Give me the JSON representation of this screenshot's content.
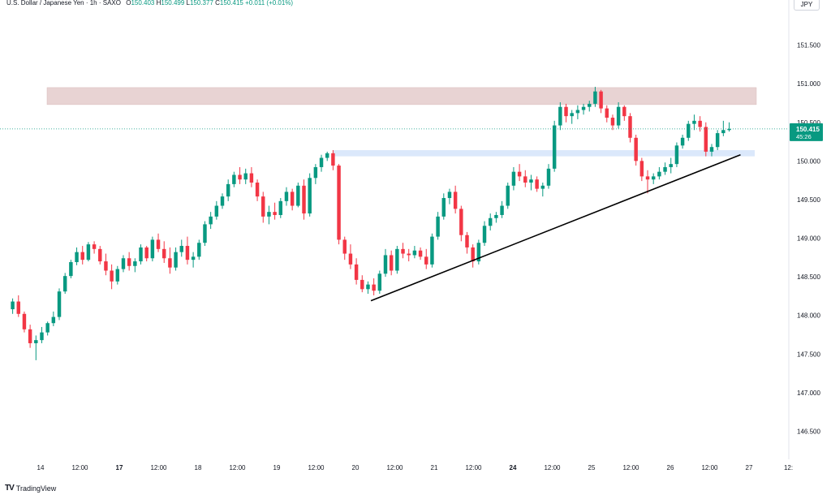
{
  "header": {
    "symbol": "U.S. Dollar / Japanese Yen · 1h · SAXO",
    "o_label": "O",
    "o_value": "150.403",
    "h_label": "H",
    "h_value": "150.499",
    "l_label": "L",
    "l_value": "150.377",
    "c_label": "C",
    "c_value": "150.415",
    "change": "+0.011 (+0.01%)"
  },
  "currency_button": "JPY",
  "brand": {
    "logo": "TV",
    "name": "TradingView"
  },
  "colors": {
    "up": "#089981",
    "down": "#f23645",
    "resistance_zone": "#e8d3d3",
    "support_zone": "#dbe8fb",
    "trendline": "#000000",
    "price_tag": "#089981"
  },
  "chart_data": {
    "type": "candlestick",
    "title": "U.S. Dollar / Japanese Yen · 1h · SAXO",
    "ylim": [
      146.2,
      152.0
    ],
    "y_ticks": [
      "151.500",
      "151.000",
      "150.500",
      "150.000",
      "149.500",
      "149.000",
      "148.500",
      "148.000",
      "147.500",
      "147.000",
      "146.500"
    ],
    "x_ticks": [
      "14",
      "12:00",
      "17",
      "12:00",
      "18",
      "12:00",
      "19",
      "12:00",
      "20",
      "12:00",
      "21",
      "12:00",
      "24",
      "12:00",
      "25",
      "12:00",
      "26",
      "12:00",
      "27",
      "12:"
    ],
    "bold_x_ticks": [
      "17",
      "24"
    ],
    "last_price": "150.415",
    "countdown": "45:26",
    "resistance_zone": [
      150.73,
      150.95
    ],
    "support_zone": [
      150.06,
      150.14
    ],
    "trendline": {
      "from_x": 62,
      "from_y": 148.19,
      "to_x": 126,
      "to_y": 150.08
    },
    "x_domain": [
      0,
      129
    ],
    "candles": [
      [
        148.08,
        148.22,
        148.02,
        148.18
      ],
      [
        148.18,
        148.26,
        147.98,
        148.02
      ],
      [
        148.02,
        148.05,
        147.78,
        147.82
      ],
      [
        147.82,
        147.88,
        147.58,
        147.64
      ],
      [
        147.64,
        147.74,
        147.42,
        147.68
      ],
      [
        147.68,
        147.85,
        147.64,
        147.78
      ],
      [
        147.78,
        147.92,
        147.74,
        147.9
      ],
      [
        147.9,
        148.05,
        147.86,
        147.98
      ],
      [
        147.98,
        148.35,
        147.94,
        148.31
      ],
      [
        148.31,
        148.55,
        148.28,
        148.51
      ],
      [
        148.51,
        148.72,
        148.48,
        148.69
      ],
      [
        148.69,
        148.88,
        148.65,
        148.82
      ],
      [
        148.82,
        148.9,
        148.66,
        148.72
      ],
      [
        148.72,
        148.95,
        148.7,
        148.92
      ],
      [
        148.92,
        148.96,
        148.8,
        148.86
      ],
      [
        148.86,
        148.9,
        148.66,
        148.7
      ],
      [
        148.7,
        148.8,
        148.52,
        148.58
      ],
      [
        148.58,
        148.66,
        148.34,
        148.44
      ],
      [
        148.44,
        148.64,
        148.4,
        148.6
      ],
      [
        148.6,
        148.78,
        148.56,
        148.74
      ],
      [
        148.74,
        148.82,
        148.58,
        148.64
      ],
      [
        148.64,
        148.74,
        148.56,
        148.7
      ],
      [
        148.7,
        148.92,
        148.66,
        148.88
      ],
      [
        148.88,
        148.9,
        148.7,
        148.74
      ],
      [
        148.74,
        149.02,
        148.7,
        148.98
      ],
      [
        148.98,
        149.06,
        148.82,
        148.86
      ],
      [
        148.86,
        148.96,
        148.68,
        148.74
      ],
      [
        148.74,
        148.88,
        148.54,
        148.62
      ],
      [
        148.62,
        148.88,
        148.58,
        148.82
      ],
      [
        148.82,
        148.98,
        148.76,
        148.9
      ],
      [
        148.9,
        149.02,
        148.66,
        148.72
      ],
      [
        148.72,
        148.82,
        148.62,
        148.76
      ],
      [
        148.76,
        148.98,
        148.72,
        148.94
      ],
      [
        148.94,
        149.22,
        148.9,
        149.18
      ],
      [
        149.18,
        149.34,
        149.12,
        149.28
      ],
      [
        149.28,
        149.48,
        149.24,
        149.42
      ],
      [
        149.42,
        149.58,
        149.38,
        149.54
      ],
      [
        149.54,
        149.76,
        149.48,
        149.7
      ],
      [
        149.7,
        149.86,
        149.66,
        149.82
      ],
      [
        149.82,
        149.92,
        149.7,
        149.76
      ],
      [
        149.76,
        149.9,
        149.7,
        149.84
      ],
      [
        149.84,
        149.92,
        149.66,
        149.72
      ],
      [
        149.72,
        149.76,
        149.48,
        149.54
      ],
      [
        149.54,
        149.6,
        149.2,
        149.28
      ],
      [
        149.28,
        149.42,
        149.18,
        149.34
      ],
      [
        149.34,
        149.46,
        149.24,
        149.3
      ],
      [
        149.3,
        149.52,
        149.26,
        149.48
      ],
      [
        149.48,
        149.66,
        149.42,
        149.6
      ],
      [
        149.6,
        149.64,
        149.36,
        149.42
      ],
      [
        149.42,
        149.72,
        149.4,
        149.68
      ],
      [
        149.68,
        149.76,
        149.24,
        149.32
      ],
      [
        149.32,
        149.84,
        149.28,
        149.78
      ],
      [
        149.78,
        149.96,
        149.7,
        149.92
      ],
      [
        149.92,
        150.08,
        149.86,
        150.04
      ],
      [
        150.04,
        150.12,
        150.0,
        150.1
      ],
      [
        150.1,
        150.14,
        149.88,
        149.94
      ],
      [
        149.94,
        149.96,
        148.92,
        148.98
      ],
      [
        148.98,
        149.02,
        148.72,
        148.8
      ],
      [
        148.8,
        148.92,
        148.6,
        148.66
      ],
      [
        148.66,
        148.74,
        148.4,
        148.46
      ],
      [
        148.46,
        148.52,
        148.3,
        148.34
      ],
      [
        148.34,
        148.44,
        148.28,
        148.4
      ],
      [
        148.4,
        148.48,
        148.26,
        148.32
      ],
      [
        148.32,
        148.58,
        148.28,
        148.54
      ],
      [
        148.54,
        148.86,
        148.5,
        148.78
      ],
      [
        148.78,
        148.84,
        148.52,
        148.58
      ],
      [
        148.58,
        148.9,
        148.54,
        148.86
      ],
      [
        148.86,
        148.94,
        148.74,
        148.8
      ],
      [
        148.8,
        148.86,
        148.7,
        148.78
      ],
      [
        148.78,
        148.9,
        148.74,
        148.84
      ],
      [
        148.84,
        148.88,
        148.72,
        148.76
      ],
      [
        148.76,
        148.86,
        148.6,
        148.66
      ],
      [
        148.66,
        149.06,
        148.62,
        149.02
      ],
      [
        149.02,
        149.34,
        148.98,
        149.28
      ],
      [
        149.28,
        149.58,
        149.24,
        149.52
      ],
      [
        149.52,
        149.64,
        149.44,
        149.6
      ],
      [
        149.6,
        149.68,
        149.32,
        149.38
      ],
      [
        149.38,
        149.42,
        148.96,
        149.04
      ],
      [
        149.04,
        149.08,
        148.8,
        148.88
      ],
      [
        148.88,
        148.92,
        148.62,
        148.7
      ],
      [
        148.7,
        148.98,
        148.66,
        148.94
      ],
      [
        148.94,
        149.22,
        148.9,
        149.16
      ],
      [
        149.16,
        149.32,
        149.1,
        149.26
      ],
      [
        149.26,
        149.34,
        149.2,
        149.3
      ],
      [
        149.3,
        149.48,
        149.26,
        149.42
      ],
      [
        149.42,
        149.72,
        149.38,
        149.68
      ],
      [
        149.68,
        149.92,
        149.62,
        149.86
      ],
      [
        149.86,
        149.96,
        149.74,
        149.8
      ],
      [
        149.8,
        149.88,
        149.66,
        149.72
      ],
      [
        149.72,
        149.82,
        149.62,
        149.76
      ],
      [
        149.76,
        149.8,
        149.6,
        149.64
      ],
      [
        149.64,
        149.72,
        149.54,
        149.68
      ],
      [
        149.68,
        149.96,
        149.64,
        149.9
      ],
      [
        149.9,
        150.52,
        149.86,
        150.46
      ],
      [
        150.46,
        150.76,
        150.4,
        150.7
      ],
      [
        150.7,
        150.74,
        150.5,
        150.58
      ],
      [
        150.58,
        150.66,
        150.48,
        150.62
      ],
      [
        150.62,
        150.72,
        150.54,
        150.66
      ],
      [
        150.66,
        150.74,
        150.6,
        150.7
      ],
      [
        150.7,
        150.78,
        150.64,
        150.74
      ],
      [
        150.74,
        150.96,
        150.7,
        150.9
      ],
      [
        150.9,
        150.92,
        150.62,
        150.68
      ],
      [
        150.68,
        150.72,
        150.5,
        150.56
      ],
      [
        150.56,
        150.6,
        150.4,
        150.46
      ],
      [
        150.46,
        150.76,
        150.42,
        150.7
      ],
      [
        150.7,
        150.72,
        150.52,
        150.58
      ],
      [
        150.58,
        150.62,
        150.24,
        150.3
      ],
      [
        150.3,
        150.34,
        149.94,
        150.0
      ],
      [
        150.0,
        150.04,
        149.74,
        149.8
      ],
      [
        149.8,
        149.88,
        149.58,
        149.76
      ],
      [
        149.76,
        149.84,
        149.7,
        149.8
      ],
      [
        149.8,
        149.92,
        149.76,
        149.86
      ],
      [
        149.86,
        149.98,
        149.82,
        149.92
      ],
      [
        149.92,
        150.04,
        149.84,
        149.96
      ],
      [
        149.96,
        150.24,
        149.92,
        150.2
      ],
      [
        150.2,
        150.34,
        150.16,
        150.3
      ],
      [
        150.3,
        150.52,
        150.26,
        150.48
      ],
      [
        150.48,
        150.6,
        150.4,
        150.52
      ],
      [
        150.52,
        150.58,
        150.38,
        150.44
      ],
      [
        150.44,
        150.5,
        150.06,
        150.12
      ],
      [
        150.12,
        150.22,
        150.06,
        150.18
      ],
      [
        150.18,
        150.4,
        150.14,
        150.36
      ],
      [
        150.36,
        150.52,
        150.32,
        150.4
      ],
      [
        150.4,
        150.5,
        150.38,
        150.415
      ]
    ]
  }
}
